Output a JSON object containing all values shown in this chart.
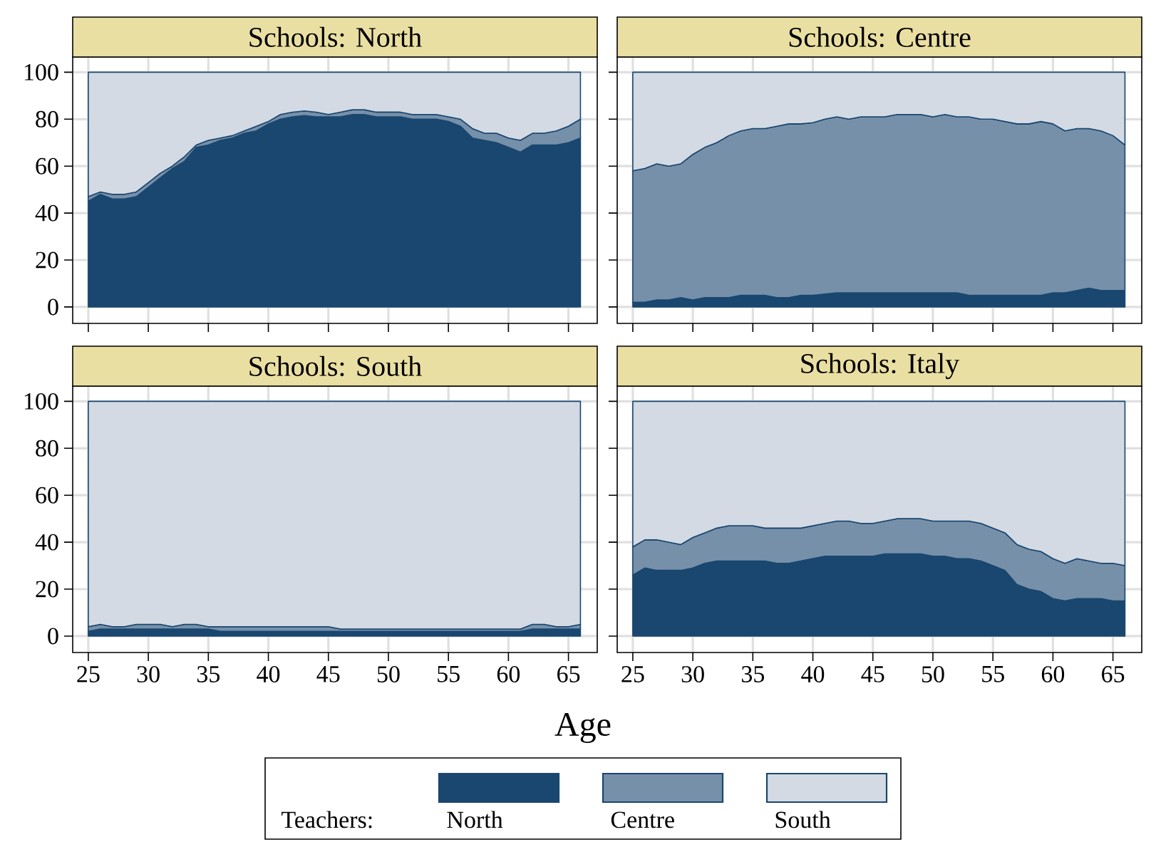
{
  "chart_data": [
    {
      "type": "area",
      "title": "Schools: North",
      "stacked": true,
      "grid": true,
      "tick_labels": "y",
      "legend": "bottom",
      "legend_title": "Teachers:",
      "x": [
        25,
        26,
        27,
        28,
        29,
        30,
        31,
        32,
        33,
        34,
        35,
        36,
        37,
        38,
        39,
        40,
        41,
        42,
        43,
        44,
        45,
        46,
        47,
        48,
        49,
        50,
        51,
        52,
        53,
        54,
        55,
        56,
        57,
        58,
        59,
        60,
        61,
        62,
        63,
        64,
        65,
        66
      ],
      "xlim": [
        23.7,
        67.4
      ],
      "ylim": [
        -7,
        106.5
      ],
      "xticks": [
        25,
        30,
        35,
        40,
        45,
        50,
        55,
        60,
        65
      ],
      "yticks": [
        0,
        20,
        40,
        60,
        80,
        100
      ],
      "series": [
        {
          "name": "North",
          "color": "#1a476f",
          "values": [
            45,
            48,
            46,
            46,
            47,
            51,
            55,
            59,
            62,
            68,
            69,
            71,
            72,
            74,
            75,
            78,
            80,
            81,
            81.5,
            81,
            81,
            81,
            82,
            82,
            81,
            81,
            81,
            80,
            80,
            80,
            79,
            77,
            72,
            71,
            70,
            68,
            66,
            69,
            69,
            69,
            70,
            72
          ]
        },
        {
          "name": "Centre",
          "color": "#7790aa",
          "values": [
            2,
            1,
            2,
            2,
            2,
            2,
            2,
            1,
            2,
            1,
            2,
            1,
            1,
            1,
            2,
            1,
            2,
            2,
            2,
            2,
            1,
            2,
            2,
            2,
            2,
            2,
            2,
            2,
            2,
            2,
            2,
            3,
            4,
            3,
            4,
            4,
            5,
            5,
            5,
            6,
            7,
            8
          ]
        },
        {
          "name": "South",
          "color": "#d3dae3",
          "values": [
            53,
            51,
            52,
            52,
            51,
            47,
            43,
            40,
            36,
            31,
            29,
            28,
            27,
            25,
            23,
            21,
            18,
            17,
            16.5,
            17,
            18,
            17,
            16,
            16,
            17,
            17,
            17,
            18,
            18,
            18,
            19,
            20,
            24,
            26,
            26,
            28,
            29,
            26,
            26,
            25,
            23,
            20
          ]
        }
      ]
    },
    {
      "type": "area",
      "title": "Schools: Centre",
      "stacked": true,
      "grid": true,
      "tick_labels": false,
      "x": [
        25,
        26,
        27,
        28,
        29,
        30,
        31,
        32,
        33,
        34,
        35,
        36,
        37,
        38,
        39,
        40,
        41,
        42,
        43,
        44,
        45,
        46,
        47,
        48,
        49,
        50,
        51,
        52,
        53,
        54,
        55,
        56,
        57,
        58,
        59,
        60,
        61,
        62,
        63,
        64,
        65,
        66
      ],
      "xlim": [
        23.7,
        67.4
      ],
      "ylim": [
        -7,
        106.5
      ],
      "xticks": [
        25,
        30,
        35,
        40,
        45,
        50,
        55,
        60,
        65
      ],
      "yticks": [
        0,
        20,
        40,
        60,
        80,
        100
      ],
      "series": [
        {
          "color": "#1a476f",
          "values": [
            2,
            2,
            3,
            3,
            4,
            3,
            4,
            4,
            4,
            5,
            5,
            5,
            4,
            4,
            5,
            5,
            5.5,
            6,
            6,
            6,
            6,
            6,
            6,
            6,
            6,
            6,
            6,
            6,
            5,
            5,
            5,
            5,
            5,
            5,
            5,
            6,
            6,
            7,
            8,
            7,
            7,
            7
          ]
        },
        {
          "color": "#7790aa",
          "values": [
            56,
            57,
            58,
            57,
            57,
            62,
            64,
            66,
            69,
            70,
            71,
            71,
            73,
            74,
            73,
            73.5,
            74.5,
            75,
            74,
            75,
            75,
            75,
            76,
            76,
            76,
            75,
            76,
            75,
            76,
            75,
            75,
            74,
            73,
            73,
            74,
            72,
            69,
            69,
            68,
            68,
            66,
            62
          ]
        },
        {
          "color": "#d3dae3",
          "values": [
            42,
            41,
            39,
            40,
            39,
            35,
            32,
            30,
            27,
            25,
            24,
            24,
            23,
            22,
            22,
            21.5,
            20,
            19,
            20,
            19,
            19,
            19,
            18,
            18,
            18,
            19,
            18,
            19,
            19,
            20,
            20,
            21,
            22,
            22,
            21,
            22,
            25,
            24,
            24,
            25,
            27,
            31
          ]
        }
      ]
    },
    {
      "type": "area",
      "title": "Schools: South",
      "stacked": true,
      "grid": true,
      "xlabel": "Age",
      "x": [
        25,
        26,
        27,
        28,
        29,
        30,
        31,
        32,
        33,
        34,
        35,
        36,
        37,
        38,
        39,
        40,
        41,
        42,
        43,
        44,
        45,
        46,
        47,
        48,
        49,
        50,
        51,
        52,
        53,
        54,
        55,
        56,
        57,
        58,
        59,
        60,
        61,
        62,
        63,
        64,
        65,
        66
      ],
      "xlim": [
        23.7,
        67.4
      ],
      "ylim": [
        -7,
        106.5
      ],
      "xticks": [
        25,
        30,
        35,
        40,
        45,
        50,
        55,
        60,
        65
      ],
      "yticks": [
        0,
        20,
        40,
        60,
        80,
        100
      ],
      "series": [
        {
          "color": "#1a476f",
          "values": [
            2,
            3,
            3,
            3,
            3,
            3,
            3,
            3,
            3,
            3,
            3,
            2,
            2,
            2,
            2,
            2,
            2,
            2,
            2,
            2,
            2,
            2,
            2,
            2,
            2,
            2,
            2,
            2,
            2,
            2,
            2,
            2,
            2,
            2,
            2,
            2,
            2,
            3,
            3,
            3,
            3,
            3
          ]
        },
        {
          "color": "#7790aa",
          "values": [
            2,
            2,
            1,
            1,
            2,
            2,
            2,
            1,
            2,
            2,
            1,
            2,
            2,
            2,
            2,
            2,
            2,
            2,
            2,
            2,
            2,
            1,
            1,
            1,
            1,
            1,
            1,
            1,
            1,
            1,
            1,
            1,
            1,
            1,
            1,
            1,
            1,
            2,
            2,
            1,
            1,
            2
          ]
        },
        {
          "color": "#d3dae3",
          "values": [
            96,
            95,
            96,
            96,
            95,
            95,
            95,
            96,
            95,
            95,
            96,
            96,
            96,
            96,
            96,
            96,
            96,
            96,
            96,
            96,
            96,
            97,
            97,
            97,
            97,
            97,
            97,
            97,
            97,
            97,
            97,
            97,
            97,
            97,
            97,
            97,
            97,
            95,
            95,
            96,
            96,
            95
          ]
        }
      ]
    },
    {
      "type": "area",
      "title": "Schools: Italy",
      "stacked": true,
      "grid": true,
      "tick_labels": "x",
      "x": [
        25,
        26,
        27,
        28,
        29,
        30,
        31,
        32,
        33,
        34,
        35,
        36,
        37,
        38,
        39,
        40,
        41,
        42,
        43,
        44,
        45,
        46,
        47,
        48,
        49,
        50,
        51,
        52,
        53,
        54,
        55,
        56,
        57,
        58,
        59,
        60,
        61,
        62,
        63,
        64,
        65,
        66
      ],
      "xlim": [
        23.7,
        67.4
      ],
      "ylim": [
        -7,
        106.5
      ],
      "xticks": [
        25,
        30,
        35,
        40,
        45,
        50,
        55,
        60,
        65
      ],
      "yticks": [
        0,
        20,
        40,
        60,
        80,
        100
      ],
      "series": [
        {
          "color": "#1a476f",
          "values": [
            26,
            29,
            28,
            28,
            28,
            29,
            31,
            32,
            32,
            32,
            32,
            32,
            31,
            31,
            32,
            33,
            34,
            34,
            34,
            34,
            34,
            35,
            35,
            35,
            35,
            34,
            34,
            33,
            33,
            32,
            30,
            28,
            22,
            20,
            19,
            16,
            15,
            16,
            16,
            16,
            15,
            15
          ]
        },
        {
          "color": "#7790aa",
          "values": [
            12,
            12,
            13,
            12,
            11,
            13,
            13,
            14,
            15,
            15,
            15,
            14,
            15,
            15,
            14,
            14,
            14,
            15,
            15,
            14,
            14,
            14,
            15,
            15,
            15,
            15,
            15,
            16,
            16,
            16,
            16,
            16,
            17,
            17,
            17,
            17,
            16,
            17,
            16,
            15,
            16,
            15
          ]
        },
        {
          "color": "#d3dae3",
          "values": [
            62,
            59,
            59,
            60,
            61,
            58,
            56,
            54,
            53,
            53,
            53,
            54,
            54,
            54,
            54,
            53,
            52,
            51,
            51,
            52,
            52,
            51,
            50,
            50,
            50,
            51,
            51,
            51,
            51,
            52,
            54,
            56,
            61,
            63,
            64,
            67,
            69,
            67,
            68,
            69,
            69,
            70
          ]
        }
      ]
    }
  ]
}
